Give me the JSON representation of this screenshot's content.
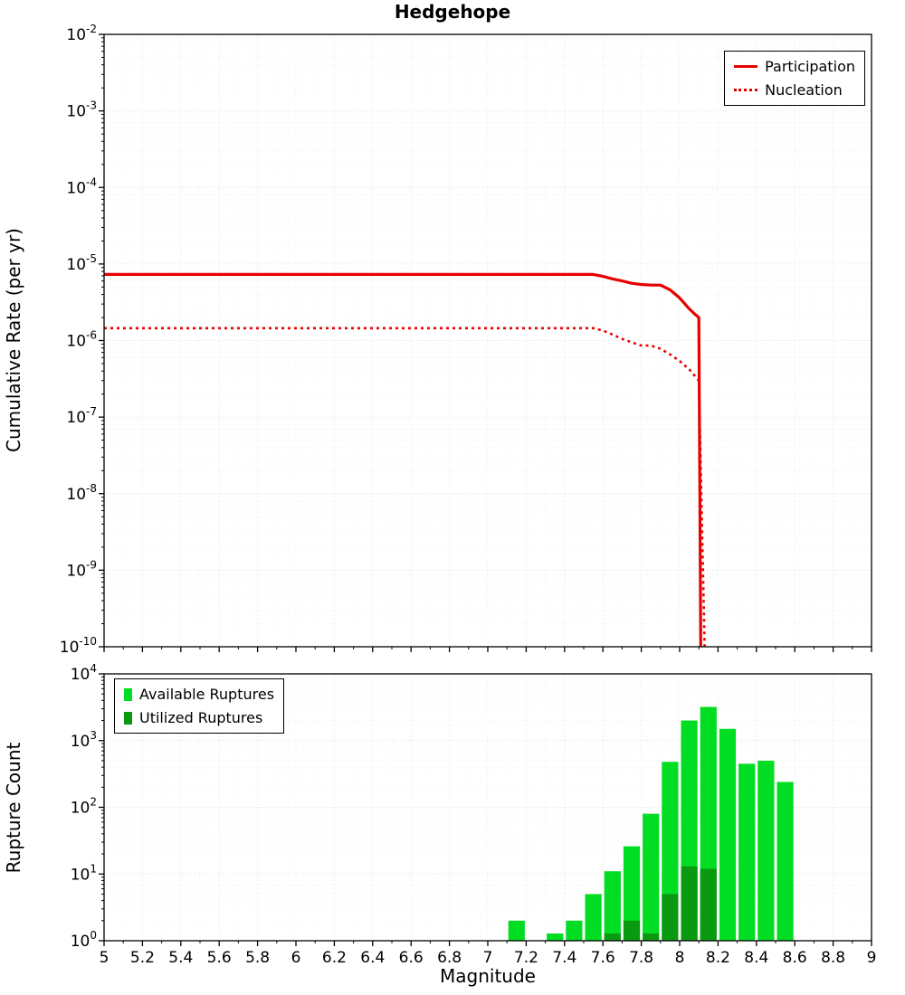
{
  "page": {
    "title": "Hedgehope"
  },
  "colors": {
    "line_red": "#e80000",
    "available_green": "#00dd22",
    "utilized_green": "#0a9a12"
  },
  "chart_data": [
    {
      "type": "line",
      "title": "Hedgehope",
      "xlabel": "Magnitude",
      "ylabel": "Cumulative Rate (per yr)",
      "xlim": [
        5,
        9
      ],
      "x_tick_step": 0.2,
      "ylog": true,
      "ylim_exp": [
        -10,
        -2
      ],
      "grid": true,
      "legend_position": "top-right",
      "series": [
        {
          "name": "Participation",
          "style": "solid",
          "color": "#e80000",
          "points": [
            [
              5.0,
              7.3e-06
            ],
            [
              7.55,
              7.3e-06
            ],
            [
              7.6,
              6.9e-06
            ],
            [
              7.65,
              6.4e-06
            ],
            [
              7.7,
              6e-06
            ],
            [
              7.75,
              5.6e-06
            ],
            [
              7.8,
              5.4e-06
            ],
            [
              7.85,
              5.3e-06
            ],
            [
              7.9,
              5.3e-06
            ],
            [
              7.95,
              4.6e-06
            ],
            [
              8.0,
              3.6e-06
            ],
            [
              8.05,
              2.6e-06
            ],
            [
              8.08,
              2.2e-06
            ],
            [
              8.1,
              2e-06
            ],
            [
              8.11,
              1e-10
            ]
          ]
        },
        {
          "name": "Nucleation",
          "style": "dotted",
          "color": "#e80000",
          "points": [
            [
              5.0,
              1.45e-06
            ],
            [
              7.55,
              1.45e-06
            ],
            [
              7.6,
              1.35e-06
            ],
            [
              7.65,
              1.2e-06
            ],
            [
              7.7,
              1.05e-06
            ],
            [
              7.75,
              9.5e-07
            ],
            [
              7.8,
              8.6e-07
            ],
            [
              7.85,
              8.6e-07
            ],
            [
              7.9,
              7.8e-07
            ],
            [
              7.95,
              6.6e-07
            ],
            [
              8.0,
              5.4e-07
            ],
            [
              8.05,
              4.2e-07
            ],
            [
              8.1,
              3e-07
            ],
            [
              8.13,
              1e-10
            ]
          ]
        }
      ]
    },
    {
      "type": "bar",
      "title": "",
      "xlabel": "Magnitude",
      "ylabel": "Rupture Count",
      "xlim": [
        5,
        9
      ],
      "x_tick_step": 0.2,
      "ylog": true,
      "ylim_exp": [
        0,
        4
      ],
      "bin_width": 0.1,
      "grid": true,
      "legend_position": "top-left",
      "series": [
        {
          "name": "Available Ruptures",
          "color": "#00dd22",
          "bins": [
            [
              7.15,
              2
            ],
            [
              7.35,
              1
            ],
            [
              7.45,
              2
            ],
            [
              7.55,
              5
            ],
            [
              7.65,
              11
            ],
            [
              7.75,
              26
            ],
            [
              7.85,
              80
            ],
            [
              7.95,
              480
            ],
            [
              8.05,
              2000
            ],
            [
              8.15,
              3200
            ],
            [
              8.25,
              1500
            ],
            [
              8.35,
              450
            ],
            [
              8.45,
              500
            ],
            [
              8.55,
              240
            ]
          ]
        },
        {
          "name": "Utilized Ruptures",
          "color": "#0a9a12",
          "bins": [
            [
              7.65,
              1
            ],
            [
              7.75,
              2
            ],
            [
              7.85,
              1
            ],
            [
              7.95,
              5
            ],
            [
              8.05,
              13
            ],
            [
              8.15,
              12
            ]
          ]
        }
      ]
    }
  ]
}
